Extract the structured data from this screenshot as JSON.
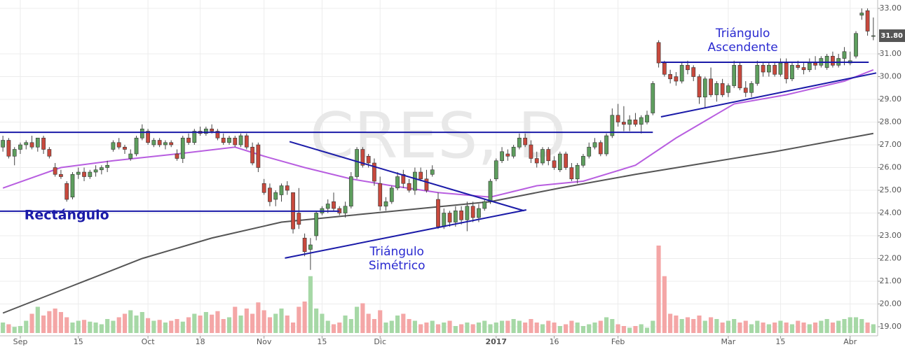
{
  "chart_data": {
    "type": "candlestick",
    "watermark": "CRES, D",
    "xlim": [
      -0.5,
      150.5
    ],
    "xticks": [
      {
        "value": 3,
        "label": "Sep"
      },
      {
        "value": 13,
        "label": "15"
      },
      {
        "value": 25,
        "label": "Oct"
      },
      {
        "value": 34,
        "label": "18"
      },
      {
        "value": 45,
        "label": "Nov"
      },
      {
        "value": 55,
        "label": "15"
      },
      {
        "value": 65,
        "label": "Dic"
      },
      {
        "value": 85,
        "label": "2017"
      },
      {
        "value": 95,
        "label": "16"
      },
      {
        "value": 106,
        "label": "Feb"
      },
      {
        "value": 125,
        "label": "Mar"
      },
      {
        "value": 134,
        "label": "15"
      },
      {
        "value": 146,
        "label": "Abr"
      }
    ],
    "ylim": [
      18.6,
      33.37
    ],
    "yticks": [
      {
        "value": 19,
        "label": "19.00"
      },
      {
        "value": 20,
        "label": "20.00"
      },
      {
        "value": 21,
        "label": "21.00"
      },
      {
        "value": 22,
        "label": "22.00"
      },
      {
        "value": 23,
        "label": "23.00"
      },
      {
        "value": 24,
        "label": "24.00"
      },
      {
        "value": 25,
        "label": "25.00"
      },
      {
        "value": 26,
        "label": "26.00"
      },
      {
        "value": 27,
        "label": "27.00"
      },
      {
        "value": 28,
        "label": "28.00"
      },
      {
        "value": 29,
        "label": "29.00"
      },
      {
        "value": 30,
        "label": "30.00"
      },
      {
        "value": 31,
        "label": "31.00"
      },
      {
        "value": 33,
        "label": "33.00"
      }
    ],
    "last_price": {
      "value": 31.8,
      "label": "31.80"
    },
    "grid": true,
    "up_color": "#5e9e5e",
    "down_color": "#c8493d",
    "up_volume_color": "#a6d8a6",
    "down_volume_color": "#f4a6a6",
    "candles": [
      [
        26.9,
        27.4,
        26.7,
        27.2
      ],
      [
        27.2,
        27.3,
        26.4,
        26.5
      ],
      [
        26.5,
        26.9,
        26.1,
        26.8
      ],
      [
        26.8,
        27.1,
        26.6,
        27.0
      ],
      [
        27.0,
        27.2,
        26.8,
        27.1
      ],
      [
        27.1,
        27.4,
        26.8,
        26.9
      ],
      [
        26.9,
        27.3,
        26.7,
        27.3
      ],
      [
        27.3,
        27.4,
        26.6,
        26.8
      ],
      [
        26.8,
        26.9,
        26.4,
        26.5
      ],
      [
        26.0,
        26.2,
        25.6,
        25.7
      ],
      [
        25.7,
        25.9,
        25.5,
        25.6
      ],
      [
        25.3,
        25.4,
        24.5,
        24.6
      ],
      [
        24.7,
        25.8,
        24.6,
        25.7
      ],
      [
        25.7,
        26.0,
        25.5,
        25.8
      ],
      [
        25.8,
        26.0,
        25.4,
        25.6
      ],
      [
        25.6,
        25.9,
        25.5,
        25.8
      ],
      [
        25.8,
        26.1,
        25.6,
        25.9
      ],
      [
        25.9,
        26.1,
        25.7,
        26.0
      ],
      [
        26.0,
        26.3,
        25.8,
        26.1
      ],
      [
        26.8,
        27.2,
        26.7,
        27.1
      ],
      [
        27.1,
        27.3,
        26.8,
        26.9
      ],
      [
        26.9,
        27.0,
        26.6,
        26.8
      ],
      [
        26.4,
        26.8,
        26.3,
        26.6
      ],
      [
        26.6,
        27.4,
        26.5,
        27.3
      ],
      [
        27.3,
        27.9,
        27.2,
        27.7
      ],
      [
        27.6,
        27.7,
        27.0,
        27.1
      ],
      [
        27.0,
        27.3,
        26.9,
        27.2
      ],
      [
        27.2,
        27.3,
        26.9,
        27.0
      ],
      [
        27.0,
        27.2,
        26.8,
        27.1
      ],
      [
        27.1,
        27.2,
        26.9,
        27.0
      ],
      [
        26.6,
        26.8,
        26.3,
        26.4
      ],
      [
        26.4,
        27.4,
        26.2,
        27.3
      ],
      [
        27.3,
        27.5,
        27.0,
        27.1
      ],
      [
        27.1,
        27.7,
        27.0,
        27.6
      ],
      [
        27.6,
        27.8,
        27.4,
        27.5
      ],
      [
        27.5,
        27.8,
        27.4,
        27.7
      ],
      [
        27.7,
        27.9,
        27.5,
        27.6
      ],
      [
        27.6,
        27.7,
        27.2,
        27.3
      ],
      [
        27.3,
        27.5,
        27.0,
        27.1
      ],
      [
        27.1,
        27.4,
        27.0,
        27.3
      ],
      [
        27.3,
        27.4,
        26.9,
        27.0
      ],
      [
        27.0,
        27.5,
        26.9,
        27.4
      ],
      [
        27.4,
        27.5,
        26.8,
        26.9
      ],
      [
        26.9,
        27.1,
        26.1,
        26.2
      ],
      [
        27.0,
        27.1,
        25.8,
        26.0
      ],
      [
        25.3,
        25.5,
        24.8,
        24.9
      ],
      [
        25.1,
        25.3,
        24.3,
        24.5
      ],
      [
        24.6,
        25.0,
        24.3,
        24.9
      ],
      [
        24.8,
        25.3,
        24.5,
        25.2
      ],
      [
        25.2,
        25.4,
        24.8,
        25.0
      ],
      [
        24.9,
        24.9,
        23.1,
        23.3
      ],
      [
        24.0,
        25.1,
        23.3,
        23.5
      ],
      [
        22.9,
        23.1,
        22.1,
        22.3
      ],
      [
        22.4,
        22.9,
        21.5,
        22.6
      ],
      [
        23.0,
        24.1,
        22.8,
        24.0
      ],
      [
        24.0,
        24.3,
        23.9,
        24.2
      ],
      [
        24.2,
        24.6,
        24.0,
        24.4
      ],
      [
        24.5,
        24.9,
        24.1,
        24.2
      ],
      [
        24.2,
        24.3,
        23.9,
        24.0
      ],
      [
        24.0,
        24.5,
        23.8,
        24.3
      ],
      [
        24.3,
        25.8,
        24.2,
        25.6
      ],
      [
        25.6,
        26.9,
        25.5,
        26.8
      ],
      [
        26.8,
        26.9,
        26.0,
        26.1
      ],
      [
        26.5,
        26.6,
        26.0,
        26.2
      ],
      [
        26.2,
        26.4,
        25.2,
        25.4
      ],
      [
        25.3,
        25.6,
        24.1,
        24.3
      ],
      [
        24.3,
        24.7,
        24.1,
        24.5
      ],
      [
        24.5,
        25.2,
        24.4,
        25.1
      ],
      [
        25.1,
        25.8,
        25.0,
        25.6
      ],
      [
        25.7,
        25.9,
        25.1,
        25.3
      ],
      [
        25.3,
        25.5,
        24.9,
        25.0
      ],
      [
        25.0,
        26.0,
        24.8,
        25.8
      ],
      [
        25.8,
        26.0,
        25.4,
        25.5
      ],
      [
        25.5,
        25.9,
        24.9,
        25.0
      ],
      [
        25.7,
        26.1,
        25.6,
        25.9
      ],
      [
        24.6,
        24.9,
        23.3,
        23.4
      ],
      [
        23.4,
        24.2,
        23.3,
        24.0
      ],
      [
        24.0,
        24.1,
        23.4,
        23.6
      ],
      [
        23.6,
        24.3,
        23.4,
        24.1
      ],
      [
        24.1,
        24.3,
        23.5,
        23.7
      ],
      [
        23.7,
        24.5,
        23.2,
        24.3
      ],
      [
        24.3,
        24.5,
        23.6,
        23.8
      ],
      [
        23.8,
        24.4,
        23.6,
        24.2
      ],
      [
        24.2,
        24.6,
        24.1,
        24.5
      ],
      [
        24.5,
        25.5,
        24.4,
        25.4
      ],
      [
        25.5,
        26.4,
        25.4,
        26.3
      ],
      [
        26.3,
        26.9,
        26.2,
        26.7
      ],
      [
        26.6,
        26.8,
        26.3,
        26.5
      ],
      [
        26.5,
        27.0,
        26.4,
        26.9
      ],
      [
        26.9,
        27.5,
        26.8,
        27.3
      ],
      [
        27.3,
        27.5,
        26.9,
        27.0
      ],
      [
        27.0,
        27.2,
        26.2,
        26.4
      ],
      [
        26.4,
        26.7,
        26.0,
        26.2
      ],
      [
        26.2,
        26.9,
        26.1,
        26.8
      ],
      [
        26.8,
        26.9,
        26.1,
        26.3
      ],
      [
        26.3,
        26.5,
        25.9,
        26.0
      ],
      [
        25.9,
        26.7,
        25.8,
        26.6
      ],
      [
        26.6,
        26.7,
        25.9,
        26.0
      ],
      [
        26.0,
        26.2,
        25.4,
        25.5
      ],
      [
        25.5,
        26.2,
        25.3,
        26.1
      ],
      [
        26.1,
        26.6,
        26.0,
        26.5
      ],
      [
        26.5,
        27.1,
        26.4,
        26.9
      ],
      [
        26.9,
        27.3,
        26.8,
        27.1
      ],
      [
        27.1,
        27.2,
        26.5,
        26.6
      ],
      [
        26.6,
        27.5,
        26.5,
        27.4
      ],
      [
        27.4,
        28.6,
        27.3,
        28.3
      ],
      [
        28.3,
        28.8,
        27.8,
        28.0
      ],
      [
        28.0,
        28.7,
        27.6,
        27.9
      ],
      [
        27.9,
        28.3,
        27.6,
        28.1
      ],
      [
        28.1,
        28.4,
        27.8,
        27.9
      ],
      [
        27.9,
        28.3,
        27.5,
        28.2
      ],
      [
        28.0,
        28.5,
        27.9,
        28.3
      ],
      [
        28.4,
        29.8,
        28.3,
        29.7
      ],
      [
        31.5,
        31.6,
        30.4,
        30.6
      ],
      [
        30.6,
        30.7,
        30.0,
        30.1
      ],
      [
        30.1,
        30.3,
        29.7,
        29.9
      ],
      [
        30.0,
        30.2,
        29.6,
        29.8
      ],
      [
        29.8,
        30.6,
        29.7,
        30.5
      ],
      [
        30.5,
        30.7,
        30.1,
        30.3
      ],
      [
        30.4,
        30.5,
        29.8,
        30.0
      ],
      [
        30.0,
        30.1,
        28.8,
        29.1
      ],
      [
        29.1,
        30.0,
        28.6,
        29.9
      ],
      [
        29.9,
        30.4,
        29.1,
        29.2
      ],
      [
        29.2,
        29.8,
        28.9,
        29.7
      ],
      [
        29.7,
        29.9,
        29.1,
        29.2
      ],
      [
        29.3,
        29.7,
        29.1,
        29.6
      ],
      [
        29.6,
        30.7,
        29.5,
        30.5
      ],
      [
        30.5,
        30.6,
        29.4,
        29.5
      ],
      [
        29.5,
        29.8,
        29.1,
        29.3
      ],
      [
        29.3,
        29.8,
        29.1,
        29.7
      ],
      [
        29.7,
        30.7,
        29.6,
        30.5
      ],
      [
        30.5,
        30.6,
        30.0,
        30.2
      ],
      [
        30.2,
        30.6,
        30.0,
        30.5
      ],
      [
        30.5,
        30.6,
        30.0,
        30.1
      ],
      [
        30.1,
        30.8,
        30.0,
        30.6
      ],
      [
        30.6,
        30.8,
        29.7,
        29.9
      ],
      [
        29.9,
        30.6,
        29.8,
        30.5
      ],
      [
        30.5,
        30.7,
        30.3,
        30.4
      ],
      [
        30.4,
        30.6,
        30.1,
        30.3
      ],
      [
        30.3,
        30.8,
        30.2,
        30.6
      ],
      [
        30.6,
        30.9,
        30.3,
        30.5
      ],
      [
        30.5,
        30.9,
        30.4,
        30.8
      ],
      [
        30.4,
        31.0,
        30.3,
        30.9
      ],
      [
        30.9,
        31.1,
        30.4,
        30.5
      ],
      [
        30.5,
        31.0,
        30.4,
        30.8
      ],
      [
        30.8,
        31.3,
        30.5,
        31.1
      ],
      [
        30.6,
        31.1,
        30.5,
        30.7
      ],
      [
        30.9,
        32.0,
        30.8,
        31.9
      ],
      [
        32.7,
        33.0,
        32.5,
        32.8
      ],
      [
        32.9,
        33.0,
        31.8,
        32.0
      ],
      [
        31.8,
        32.6,
        31.6,
        31.8
      ]
    ],
    "vlim": [
      0,
      100
    ],
    "volume": [
      12,
      10,
      7,
      8,
      14,
      22,
      30,
      20,
      25,
      28,
      24,
      18,
      12,
      14,
      15,
      13,
      12,
      10,
      16,
      14,
      18,
      22,
      26,
      20,
      24,
      17,
      14,
      15,
      12,
      14,
      16,
      13,
      18,
      22,
      20,
      24,
      21,
      25,
      16,
      18,
      30,
      20,
      28,
      22,
      35,
      26,
      18,
      22,
      28,
      20,
      12,
      30,
      36,
      65,
      28,
      22,
      14,
      10,
      12,
      20,
      16,
      30,
      34,
      22,
      16,
      26,
      12,
      14,
      20,
      22,
      16,
      14,
      10,
      12,
      14,
      10,
      12,
      14,
      8,
      10,
      12,
      10,
      12,
      14,
      10,
      12,
      14,
      14,
      16,
      14,
      12,
      16,
      12,
      10,
      14,
      12,
      8,
      10,
      14,
      12,
      8,
      10,
      12,
      14,
      18,
      16,
      10,
      8,
      6,
      8,
      10,
      6,
      14,
      100,
      65,
      22,
      20,
      16,
      18,
      16,
      20,
      14,
      18,
      16,
      12,
      14,
      16,
      12,
      14,
      10,
      14,
      12,
      10,
      12,
      14,
      12,
      10,
      14,
      12,
      10,
      12,
      14,
      16,
      12,
      14,
      16,
      18,
      18,
      16,
      12,
      10
    ],
    "moving_averages": [
      {
        "color": "#b85ee0",
        "x": [
          0,
          10,
          19,
          30,
          40,
          45,
          52,
          60,
          67,
          75,
          84,
          92,
          100,
          109,
          116,
          126,
          135,
          145,
          150
        ],
        "values": [
          25.1,
          26.0,
          26.3,
          26.6,
          26.9,
          26.5,
          26.0,
          25.5,
          25.2,
          24.9,
          24.7,
          25.2,
          25.4,
          26.1,
          27.3,
          28.8,
          29.2,
          29.8,
          30.3
        ]
      },
      {
        "color": "#555555",
        "x": [
          0,
          12,
          24,
          36,
          48,
          60,
          72,
          84,
          96,
          109,
          121,
          133,
          150
        ],
        "values": [
          19.6,
          20.8,
          22.0,
          22.9,
          23.6,
          23.9,
          24.2,
          24.5,
          25.1,
          25.7,
          26.2,
          26.7,
          27.5
        ]
      }
    ],
    "trendlines": [
      {
        "color": "#1a1aa8",
        "x": [
          -0.5,
          112
        ],
        "values": [
          27.55,
          27.55
        ]
      },
      {
        "color": "#1a1aa8",
        "x": [
          -0.5,
          58
        ],
        "values": [
          24.08,
          24.08
        ]
      },
      {
        "color": "#1a1aa8",
        "x": [
          49.4,
          89.8
        ],
        "values": [
          27.14,
          24.1
        ]
      },
      {
        "color": "#1a1aa8",
        "x": [
          48.6,
          90.2
        ],
        "values": [
          22.02,
          24.14
        ]
      },
      {
        "color": "#1a1aa8",
        "x": [
          113.4,
          149.2
        ],
        "values": [
          30.63,
          30.63
        ]
      },
      {
        "color": "#1a1aa8",
        "x": [
          113.4,
          150.5
        ],
        "values": [
          28.23,
          30.16
        ]
      }
    ],
    "annotations": [
      {
        "lines": [
          "Rectángulo"
        ],
        "x": 3.7,
        "y": 23.9,
        "bold": true
      },
      {
        "lines": [
          "Triángulo",
          "Simétrico"
        ],
        "x": 67.9,
        "y": 22.3,
        "bold": false
      },
      {
        "lines": [
          "Triángulo",
          "Ascendente"
        ],
        "x": 127.5,
        "y": 31.9,
        "bold": false
      }
    ]
  }
}
